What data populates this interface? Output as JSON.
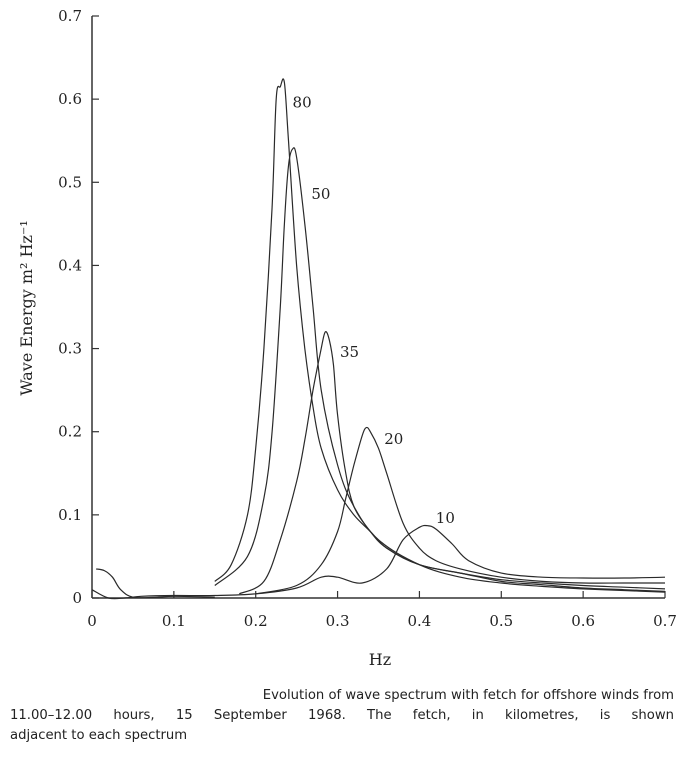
{
  "chart_data": {
    "type": "line",
    "xlabel": "Hz",
    "ylabel": "Wave Energy m² Hz⁻¹",
    "xlim": [
      0,
      0.7
    ],
    "ylim": [
      0,
      0.7
    ],
    "x_ticks": [
      "0",
      "0.1",
      "0.2",
      "0.3",
      "0.4",
      "0.5",
      "0.6",
      "0.7"
    ],
    "y_ticks": [
      "0",
      "0.1",
      "0.2",
      "0.3",
      "0.4",
      "0.5",
      "0.6",
      "0.7"
    ],
    "grid": false,
    "series": [
      {
        "name": "80",
        "x": [
          0.15,
          0.17,
          0.19,
          0.2,
          0.21,
          0.22,
          0.225,
          0.23,
          0.235,
          0.24,
          0.25,
          0.26,
          0.27,
          0.28,
          0.3,
          0.32,
          0.34,
          0.36,
          0.4,
          0.45,
          0.5,
          0.55,
          0.6,
          0.65,
          0.7
        ],
        "y": [
          0.02,
          0.04,
          0.1,
          0.18,
          0.3,
          0.47,
          0.6,
          0.615,
          0.62,
          0.55,
          0.4,
          0.3,
          0.23,
          0.18,
          0.13,
          0.1,
          0.08,
          0.06,
          0.04,
          0.03,
          0.02,
          0.016,
          0.012,
          0.01,
          0.008
        ]
      },
      {
        "name": "50",
        "x": [
          0.15,
          0.19,
          0.21,
          0.22,
          0.23,
          0.235,
          0.24,
          0.245,
          0.25,
          0.26,
          0.27,
          0.28,
          0.3,
          0.32,
          0.35,
          0.4,
          0.45,
          0.5,
          0.55,
          0.6,
          0.65,
          0.7
        ],
        "y": [
          0.015,
          0.05,
          0.12,
          0.2,
          0.35,
          0.45,
          0.52,
          0.54,
          0.53,
          0.45,
          0.35,
          0.25,
          0.16,
          0.11,
          0.07,
          0.04,
          0.025,
          0.018,
          0.014,
          0.011,
          0.009,
          0.007
        ]
      },
      {
        "name": "35",
        "x": [
          0.18,
          0.21,
          0.23,
          0.25,
          0.26,
          0.27,
          0.28,
          0.285,
          0.29,
          0.295,
          0.3,
          0.31,
          0.32,
          0.34,
          0.36,
          0.4,
          0.45,
          0.5,
          0.55,
          0.6,
          0.65,
          0.7
        ],
        "y": [
          0.005,
          0.02,
          0.07,
          0.14,
          0.19,
          0.25,
          0.3,
          0.32,
          0.31,
          0.28,
          0.22,
          0.15,
          0.11,
          0.08,
          0.06,
          0.04,
          0.03,
          0.022,
          0.018,
          0.015,
          0.013,
          0.011
        ]
      },
      {
        "name": "20",
        "x": [
          0.2,
          0.25,
          0.28,
          0.3,
          0.31,
          0.32,
          0.33,
          0.335,
          0.34,
          0.35,
          0.36,
          0.38,
          0.4,
          0.42,
          0.45,
          0.5,
          0.55,
          0.6,
          0.65,
          0.7
        ],
        "y": [
          0.005,
          0.015,
          0.04,
          0.08,
          0.12,
          0.16,
          0.195,
          0.205,
          0.2,
          0.18,
          0.15,
          0.09,
          0.06,
          0.045,
          0.035,
          0.025,
          0.02,
          0.018,
          0.018,
          0.018
        ]
      },
      {
        "name": "10",
        "x": [
          0.0,
          0.02,
          0.04,
          0.06,
          0.1,
          0.15,
          0.2,
          0.25,
          0.28,
          0.3,
          0.33,
          0.36,
          0.38,
          0.4,
          0.41,
          0.42,
          0.44,
          0.46,
          0.5,
          0.55,
          0.6,
          0.65,
          0.7
        ],
        "y": [
          0.01,
          0.0,
          0.0,
          0.002,
          0.003,
          0.003,
          0.005,
          0.012,
          0.025,
          0.025,
          0.018,
          0.035,
          0.07,
          0.085,
          0.087,
          0.083,
          0.065,
          0.045,
          0.03,
          0.025,
          0.024,
          0.024,
          0.025
        ]
      },
      {
        "name": "",
        "x": [
          0.005,
          0.015,
          0.025,
          0.035,
          0.05,
          0.08,
          0.1,
          0.15
        ],
        "y": [
          0.035,
          0.033,
          0.025,
          0.01,
          0.001,
          0.001,
          0.002,
          0.001
        ]
      }
    ],
    "series_labels": [
      {
        "text": "80",
        "x": 0.245,
        "y": 0.59
      },
      {
        "text": "50",
        "x": 0.268,
        "y": 0.48
      },
      {
        "text": "35",
        "x": 0.303,
        "y": 0.29
      },
      {
        "text": "20",
        "x": 0.357,
        "y": 0.185
      },
      {
        "text": "10",
        "x": 0.42,
        "y": 0.09
      }
    ]
  },
  "caption": {
    "line1": "Evolution of wave spectrum with fetch for offshore winds from",
    "line2": "11.00–12.00 hours, 15 September 1968. The fetch, in kilometres, is shown",
    "line3": "adjacent to each spectrum"
  }
}
